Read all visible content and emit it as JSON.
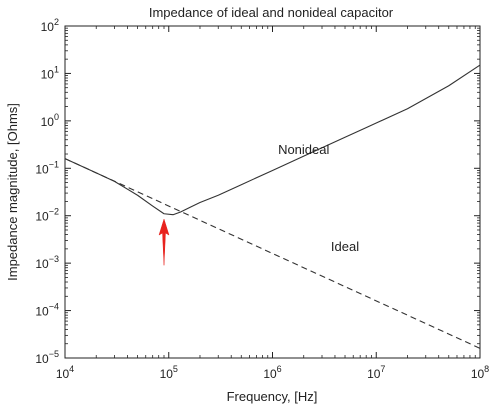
{
  "chart_data": {
    "type": "line",
    "title": "Impedance of ideal and nonideal capacitor",
    "xlabel": "Frequency, [Hz]",
    "ylabel": "Impedance magnitude, [Ohms]",
    "x_scale": "log",
    "y_scale": "log",
    "xlim": [
      10000,
      100000000
    ],
    "ylim": [
      1e-05,
      100
    ],
    "x_ticks": [
      {
        "base": "10",
        "exp": "4",
        "value": 10000
      },
      {
        "base": "10",
        "exp": "5",
        "value": 100000
      },
      {
        "base": "10",
        "exp": "6",
        "value": 1000000
      },
      {
        "base": "10",
        "exp": "7",
        "value": 10000000
      },
      {
        "base": "10",
        "exp": "8",
        "value": 100000000
      }
    ],
    "y_ticks": [
      {
        "base": "10",
        "exp": "2",
        "value": 100
      },
      {
        "base": "10",
        "exp": "1",
        "value": 10
      },
      {
        "base": "10",
        "exp": "0",
        "value": 1
      },
      {
        "base": "10",
        "exp": "−1",
        "value": 0.1
      },
      {
        "base": "10",
        "exp": "−2",
        "value": 0.01
      },
      {
        "base": "10",
        "exp": "−3",
        "value": 0.001
      },
      {
        "base": "10",
        "exp": "−4",
        "value": 0.0001
      },
      {
        "base": "10",
        "exp": "−5",
        "value": 1e-05
      }
    ],
    "grid": false,
    "series": [
      {
        "name": "Nonideal",
        "line_style": "solid",
        "color": "#333333",
        "x": [
          10000,
          20000,
          30000,
          50000,
          70000,
          90000,
          110000,
          130000,
          160000,
          200000,
          300000,
          500000,
          1000000,
          2000000,
          5000000,
          10000000,
          20000000,
          50000000,
          100000000
        ],
        "y": [
          0.16,
          0.08,
          0.053,
          0.027,
          0.016,
          0.011,
          0.0105,
          0.012,
          0.015,
          0.019,
          0.027,
          0.045,
          0.09,
          0.18,
          0.45,
          0.9,
          1.8,
          5.5,
          15
        ]
      },
      {
        "name": "Ideal",
        "line_style": "dashed",
        "color": "#333333",
        "x": [
          10000,
          100000000
        ],
        "y": [
          0.16,
          1.6e-05
        ]
      }
    ],
    "annotations": [
      {
        "text": "Nonideal",
        "x": 2000000,
        "y": 0.2
      },
      {
        "text": "Ideal",
        "x": 5000000,
        "y": 0.0018
      }
    ],
    "arrow": {
      "color": "#e8231e",
      "x": 90000,
      "y_tip": 0.0085,
      "y_tail": 0.0009,
      "direction": "up"
    }
  }
}
